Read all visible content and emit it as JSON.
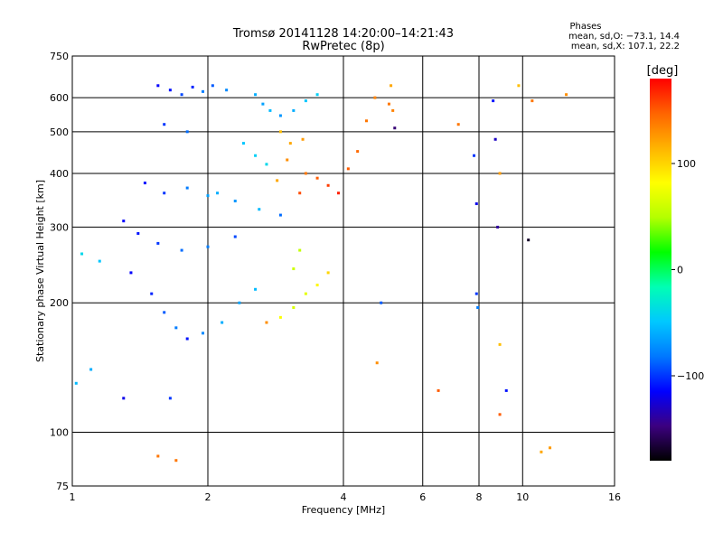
{
  "chart_data": {
    "type": "scatter",
    "title": "Tromsø 20141128 14:20:00–14:21:43",
    "subtitle": "RwPretec (8p)",
    "xlabel": "Frequency [MHz]",
    "ylabel": "Stationary phase Virtual Height [km]",
    "x_scale": "log2",
    "y_scale": "log",
    "xlim": [
      1,
      16
    ],
    "ylim": [
      75,
      750
    ],
    "x_ticks": [
      1,
      2,
      4,
      6,
      8,
      10,
      16
    ],
    "x_tick_labels": [
      "1",
      "2",
      "4",
      "6",
      "8",
      "10",
      "16"
    ],
    "y_ticks": [
      75,
      100,
      200,
      300,
      400,
      500,
      600,
      750
    ],
    "y_tick_labels": [
      "75",
      "100",
      "200",
      "300",
      "400",
      "500",
      "600",
      "750"
    ],
    "grid": true,
    "stats": {
      "heading": "Phases",
      "line_o": "mean, sd,O: −73.1, 14.4",
      "line_x": "mean, sd,X: 107.1, 22.2"
    },
    "colorbar": {
      "label": "[deg]",
      "range": [
        -180,
        180
      ],
      "ticks": [
        100,
        0,
        -100
      ],
      "tick_labels": [
        "100",
        "0",
        "−100"
      ],
      "colors": [
        "#000000",
        "#3c0080",
        "#0000ff",
        "#0078ff",
        "#00c8ff",
        "#00ffb4",
        "#00ff00",
        "#b4ff00",
        "#ffff00",
        "#ffb400",
        "#ff6400",
        "#ff0000"
      ]
    },
    "series": [
      {
        "points": [
          [
            1.55,
            640,
            -115
          ],
          [
            1.65,
            625,
            -110
          ],
          [
            1.75,
            610,
            -95
          ],
          [
            1.85,
            635,
            -105
          ],
          [
            1.95,
            620,
            -80
          ],
          [
            2.05,
            640,
            -90
          ],
          [
            2.2,
            625,
            -75
          ],
          [
            2.55,
            610,
            -60
          ],
          [
            2.65,
            580,
            -65
          ],
          [
            2.75,
            560,
            -55
          ],
          [
            2.9,
            545,
            -70
          ],
          [
            3.1,
            560,
            -60
          ],
          [
            3.3,
            590,
            -50
          ],
          [
            3.5,
            610,
            -45
          ],
          [
            1.6,
            520,
            -100
          ],
          [
            1.8,
            500,
            -85
          ],
          [
            2.4,
            470,
            -50
          ],
          [
            2.55,
            440,
            -45
          ],
          [
            2.7,
            420,
            -40
          ],
          [
            1.45,
            380,
            -110
          ],
          [
            1.6,
            360,
            -100
          ],
          [
            1.8,
            370,
            -80
          ],
          [
            2.0,
            355,
            -65
          ],
          [
            2.1,
            360,
            -60
          ],
          [
            2.3,
            345,
            -70
          ],
          [
            2.6,
            330,
            -55
          ],
          [
            2.9,
            320,
            -85
          ],
          [
            1.3,
            310,
            -115
          ],
          [
            1.4,
            290,
            -110
          ],
          [
            1.55,
            275,
            -100
          ],
          [
            1.75,
            265,
            -85
          ],
          [
            2.0,
            270,
            -80
          ],
          [
            2.3,
            285,
            -95
          ],
          [
            2.9,
            500,
            110
          ],
          [
            3.05,
            470,
            120
          ],
          [
            3.25,
            480,
            125
          ],
          [
            3.0,
            430,
            130
          ],
          [
            3.3,
            400,
            140
          ],
          [
            3.5,
            390,
            150
          ],
          [
            3.7,
            375,
            160
          ],
          [
            3.9,
            360,
            170
          ],
          [
            4.1,
            410,
            150
          ],
          [
            4.3,
            450,
            145
          ],
          [
            4.5,
            530,
            140
          ],
          [
            4.7,
            600,
            135
          ],
          [
            2.85,
            385,
            120
          ],
          [
            3.2,
            360,
            155
          ],
          [
            1.35,
            235,
            -115
          ],
          [
            1.5,
            210,
            -105
          ],
          [
            1.6,
            190,
            -90
          ],
          [
            1.7,
            175,
            -80
          ],
          [
            1.8,
            165,
            -110
          ],
          [
            1.95,
            170,
            -75
          ],
          [
            2.15,
            180,
            -60
          ],
          [
            2.35,
            200,
            -65
          ],
          [
            2.55,
            215,
            -55
          ],
          [
            2.7,
            180,
            130
          ],
          [
            2.9,
            185,
            80
          ],
          [
            3.1,
            195,
            65
          ],
          [
            3.3,
            210,
            70
          ],
          [
            3.5,
            220,
            85
          ],
          [
            3.7,
            235,
            100
          ],
          [
            3.1,
            240,
            60
          ],
          [
            3.2,
            265,
            55
          ],
          [
            1.05,
            260,
            -40
          ],
          [
            1.15,
            250,
            -50
          ],
          [
            1.02,
            130,
            -55
          ],
          [
            1.1,
            140,
            -60
          ],
          [
            1.3,
            120,
            -120
          ],
          [
            1.65,
            120,
            -100
          ],
          [
            1.55,
            88,
            140
          ],
          [
            1.7,
            86,
            140
          ],
          [
            5.05,
            580,
            140
          ],
          [
            5.15,
            560,
            135
          ],
          [
            5.1,
            640,
            120
          ],
          [
            5.2,
            510,
            -150
          ],
          [
            6.5,
            125,
            150
          ],
          [
            7.2,
            520,
            140
          ],
          [
            7.8,
            440,
            -100
          ],
          [
            7.9,
            340,
            -120
          ],
          [
            7.9,
            210,
            -100
          ],
          [
            7.95,
            195,
            -80
          ],
          [
            8.6,
            590,
            -110
          ],
          [
            8.7,
            480,
            -130
          ],
          [
            8.8,
            300,
            -140
          ],
          [
            8.9,
            400,
            125
          ],
          [
            8.9,
            160,
            110
          ],
          [
            8.9,
            110,
            150
          ],
          [
            9.2,
            125,
            -110
          ],
          [
            9.8,
            640,
            110
          ],
          [
            10.3,
            280,
            -170
          ],
          [
            10.5,
            590,
            140
          ],
          [
            11.0,
            90,
            120
          ],
          [
            11.5,
            92,
            125
          ],
          [
            12.5,
            610,
            130
          ],
          [
            4.75,
            145,
            130
          ],
          [
            4.85,
            200,
            -90
          ]
        ]
      }
    ]
  }
}
